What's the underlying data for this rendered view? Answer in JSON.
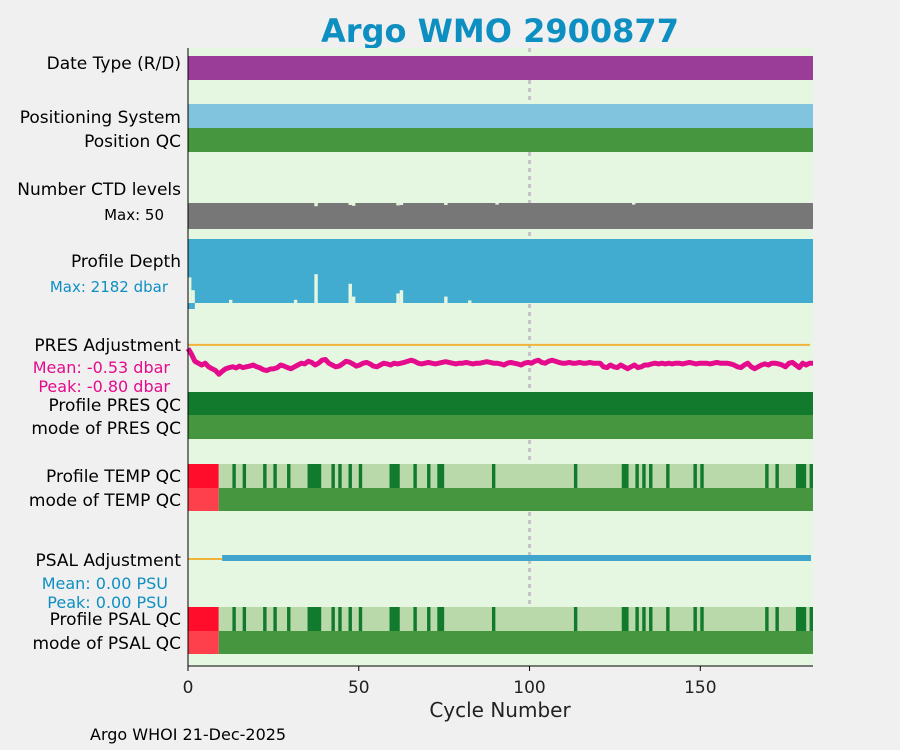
{
  "title": "Argo WMO 2900877",
  "footer": "Argo WHOI 21-Dec-2025",
  "colors": {
    "title": "#0e8fc2",
    "background": "#e5f7e0",
    "date_type": "#993d99",
    "positioning": "#80c5dd",
    "qc_good": "#45963f",
    "qc_dark": "#117a2c",
    "qc_light": "#bad9ab",
    "qc_bad": "#ff0d2a",
    "qc_bad_mode": "#fd404b",
    "ctd": "#777777",
    "depth": "#42abd0",
    "pres_line": "#e40b8c",
    "psal_line": "#3fa5cc",
    "zero_line": "#f0b43c",
    "marker": "#c4c4c4"
  },
  "chart_data": {
    "type": "timeline",
    "xlabel": "Cycle Number",
    "xlim": [
      0,
      183
    ],
    "xticks": [
      "0",
      "50",
      "100",
      "150"
    ],
    "xtick_values": [
      0,
      50,
      100,
      150
    ],
    "marker_cycle": 100,
    "rows": {
      "date_type": "Date Type (R/D)",
      "positioning": "Positioning System",
      "position_qc": "Position QC",
      "ctd": "Number CTD levels",
      "ctd_max": "Max: 50",
      "depth": "Profile Depth",
      "depth_max": "Max: 2182 dbar",
      "pres_adj": "PRES Adjustment",
      "pres_mean": "Mean: -0.53 dbar",
      "pres_peak": "Peak: -0.80 dbar",
      "pres_qc": "Profile PRES QC",
      "pres_mode": "mode of PRES QC",
      "temp_qc": "Profile TEMP QC",
      "temp_mode": "mode of TEMP QC",
      "psal_adj": "PSAL Adjustment",
      "psal_mean": "Mean: 0.00 PSU",
      "psal_peak": "Peak: 0.00 PSU",
      "psal_qc": "Profile PSAL QC",
      "psal_mode": "mode of PSAL QC"
    },
    "ctd_levels_max": 50,
    "ctd_dips": [
      [
        37,
        0.92
      ],
      [
        47,
        0.95
      ],
      [
        48,
        0.93
      ],
      [
        61,
        0.94
      ],
      [
        62,
        0.95
      ],
      [
        75,
        0.95
      ],
      [
        90,
        0.96
      ],
      [
        130,
        0.96
      ]
    ],
    "profile_depth_max": 2182,
    "depth_short": [
      [
        0,
        0.6
      ],
      [
        1,
        0.8
      ],
      [
        12,
        0.95
      ],
      [
        31,
        0.95
      ],
      [
        37,
        0.55
      ],
      [
        47,
        0.7
      ],
      [
        48,
        0.9
      ],
      [
        61,
        0.85
      ],
      [
        62,
        0.8
      ],
      [
        75,
        0.9
      ],
      [
        82,
        0.96
      ]
    ],
    "pres_adjustment": [
      -0.1,
      -0.25,
      -0.45,
      -0.5,
      -0.55,
      -0.5,
      -0.6,
      -0.65,
      -0.7,
      -0.8,
      -0.72,
      -0.65,
      -0.62,
      -0.6,
      -0.63,
      -0.58,
      -0.62,
      -0.6,
      -0.58,
      -0.55,
      -0.6,
      -0.63,
      -0.68,
      -0.7,
      -0.66,
      -0.65,
      -0.62,
      -0.55,
      -0.58,
      -0.62,
      -0.65,
      -0.6,
      -0.55,
      -0.5,
      -0.52,
      -0.45,
      -0.48,
      -0.55,
      -0.5,
      -0.42,
      -0.4,
      -0.5,
      -0.55,
      -0.6,
      -0.58,
      -0.52,
      -0.45,
      -0.47,
      -0.52,
      -0.58,
      -0.55,
      -0.5,
      -0.48,
      -0.52,
      -0.58,
      -0.6,
      -0.55,
      -0.5,
      -0.52,
      -0.55,
      -0.5,
      -0.52,
      -0.5,
      -0.48,
      -0.45,
      -0.42,
      -0.45,
      -0.5,
      -0.52,
      -0.5,
      -0.48,
      -0.5,
      -0.52,
      -0.5,
      -0.48,
      -0.46,
      -0.48,
      -0.5,
      -0.52,
      -0.5,
      -0.5,
      -0.48,
      -0.5,
      -0.52,
      -0.5,
      -0.5,
      -0.48,
      -0.46,
      -0.48,
      -0.5,
      -0.5,
      -0.52,
      -0.55,
      -0.5,
      -0.48,
      -0.5,
      -0.52,
      -0.55,
      -0.5,
      -0.48,
      -0.5,
      -0.45,
      -0.42,
      -0.48,
      -0.5,
      -0.45,
      -0.42,
      -0.45,
      -0.48,
      -0.5,
      -0.5,
      -0.48,
      -0.5,
      -0.5,
      -0.48,
      -0.5,
      -0.5,
      -0.48,
      -0.5,
      -0.5,
      -0.5,
      -0.6,
      -0.62,
      -0.55,
      -0.6,
      -0.62,
      -0.55,
      -0.6,
      -0.65,
      -0.6,
      -0.55,
      -0.62,
      -0.6,
      -0.55,
      -0.55,
      -0.52,
      -0.5,
      -0.52,
      -0.5,
      -0.52,
      -0.5,
      -0.52,
      -0.5,
      -0.5,
      -0.52,
      -0.5,
      -0.48,
      -0.5,
      -0.52,
      -0.5,
      -0.5,
      -0.5,
      -0.52,
      -0.5,
      -0.48,
      -0.5,
      -0.5,
      -0.5,
      -0.52,
      -0.55,
      -0.6,
      -0.62,
      -0.55,
      -0.5,
      -0.6,
      -0.65,
      -0.6,
      -0.55,
      -0.52,
      -0.55,
      -0.5,
      -0.5,
      -0.52,
      -0.55,
      -0.6,
      -0.5,
      -0.48,
      -0.55,
      -0.62,
      -0.5,
      -0.55,
      -0.5,
      -0.5
    ],
    "pres_range": [
      -0.85,
      0.05
    ],
    "psal_adjustment_start": 10,
    "temp_bad_cycles": [
      0,
      9
    ],
    "temp_dark_cycles": [
      [
        13,
        14
      ],
      [
        16,
        17
      ],
      [
        22,
        23
      ],
      [
        25,
        26
      ],
      [
        29,
        30
      ],
      [
        35,
        39
      ],
      [
        42,
        43
      ],
      [
        44,
        45
      ],
      [
        47,
        48
      ],
      [
        50,
        51
      ],
      [
        59,
        62
      ],
      [
        66,
        67
      ],
      [
        70,
        71
      ],
      [
        73,
        75
      ],
      [
        89,
        90
      ],
      [
        113,
        114
      ],
      [
        127,
        129
      ],
      [
        131,
        132
      ],
      [
        133,
        134
      ],
      [
        135,
        136
      ],
      [
        140,
        141
      ],
      [
        148,
        149
      ],
      [
        150,
        151
      ],
      [
        169,
        170
      ],
      [
        172,
        173
      ],
      [
        178,
        181
      ],
      [
        182,
        183
      ]
    ],
    "psal_dark_cycles": [
      [
        13,
        14
      ],
      [
        16,
        17
      ],
      [
        22,
        23
      ],
      [
        25,
        26
      ],
      [
        29,
        30
      ],
      [
        35,
        39
      ],
      [
        42,
        43
      ],
      [
        44,
        45
      ],
      [
        47,
        48
      ],
      [
        50,
        51
      ],
      [
        59,
        62
      ],
      [
        66,
        67
      ],
      [
        70,
        71
      ],
      [
        73,
        75
      ],
      [
        89,
        90
      ],
      [
        113,
        114
      ],
      [
        127,
        129
      ],
      [
        131,
        132
      ],
      [
        133,
        134
      ],
      [
        135,
        136
      ],
      [
        140,
        141
      ],
      [
        148,
        149
      ],
      [
        150,
        151
      ],
      [
        169,
        170
      ],
      [
        172,
        173
      ],
      [
        178,
        181
      ],
      [
        182,
        183
      ]
    ]
  }
}
